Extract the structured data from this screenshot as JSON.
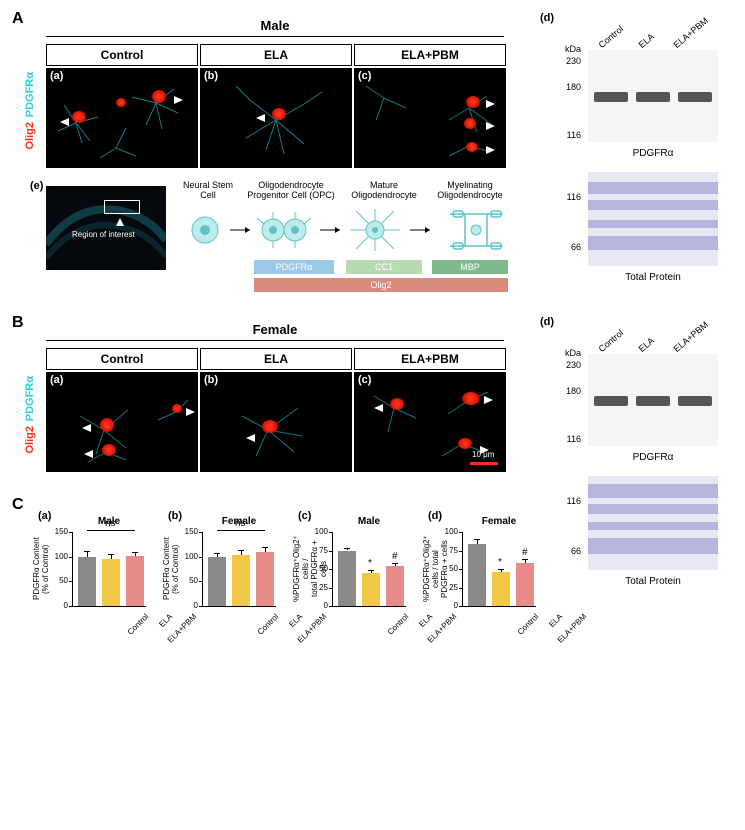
{
  "panels": {
    "A": "A",
    "B": "B",
    "C": "C"
  },
  "sections": {
    "male": "Male",
    "female": "Female"
  },
  "columns": [
    "Control",
    "ELA",
    "ELA+PBM"
  ],
  "sublabels": {
    "a": "(a)",
    "b": "(b)",
    "c": "(c)",
    "d": "(d)",
    "e": "(e)"
  },
  "stain": {
    "pdgfra": "PDGFRα",
    "olig2": "Olig2"
  },
  "stain_colors": {
    "pdgfra": "#2ad2d8",
    "olig2": "#ff2a1a"
  },
  "lineage": {
    "nsc": "Neural Stem\nCell",
    "opc": "Oligodendrocyte\nProgenitor Cell (OPC)",
    "mature": "Mature\nOligodendrocyte",
    "myel": "Myelinating\nOligodendrocyte",
    "markers": {
      "pdgfra": {
        "label": "PDGFRα",
        "color": "#9cc7e6"
      },
      "cc1": {
        "label": "CC1",
        "color": "#b7dab0"
      },
      "mbp": {
        "label": "MBP",
        "color": "#7eb88c"
      },
      "olig2": {
        "label": "Olig2",
        "color": "#d98a7a"
      }
    },
    "roi_text": "Region of interest"
  },
  "blot": {
    "lanes": [
      "Control",
      "ELA",
      "ELA+PBM"
    ],
    "kda_ul": "kDa",
    "kda_upper": [
      "230",
      "180",
      "116"
    ],
    "protein": "PDGFRα",
    "tp": "Total Protein",
    "kda_lower": [
      "116",
      "66"
    ]
  },
  "charts": {
    "a": {
      "title": "Male",
      "sub": "(a)",
      "ylabel": "PDGFRα Content (% of Control)",
      "ymax": 150,
      "yticks": [
        0,
        50,
        100,
        150
      ],
      "bars": [
        {
          "label": "Control",
          "value": 100,
          "err": 12,
          "color": "#8a8a8a"
        },
        {
          "label": "ELA",
          "value": 95,
          "err": 10,
          "color": "#f2c744"
        },
        {
          "label": "ELA+PBM",
          "value": 101,
          "err": 9,
          "color": "#e68a8a"
        }
      ],
      "sig": "ns"
    },
    "b": {
      "title": "Female",
      "sub": "(b)",
      "ylabel": "PDGFRα Content (% of Control)",
      "ymax": 150,
      "yticks": [
        0,
        50,
        100,
        150
      ],
      "bars": [
        {
          "label": "Control",
          "value": 100,
          "err": 8,
          "color": "#8a8a8a"
        },
        {
          "label": "ELA",
          "value": 104,
          "err": 10,
          "color": "#f2c744"
        },
        {
          "label": "ELA+PBM",
          "value": 109,
          "err": 10,
          "color": "#e68a8a"
        }
      ],
      "sig": "ns"
    },
    "c": {
      "title": "Male",
      "sub": "(c)",
      "ylabel": "%PDGFRα⁺Olig2⁺ cells /\ntotal PDGFRα + cells",
      "ymax": 100,
      "yticks": [
        0,
        25,
        50,
        75,
        100
      ],
      "bars": [
        {
          "label": "Control",
          "value": 75,
          "err": 4,
          "color": "#8a8a8a"
        },
        {
          "label": "ELA",
          "value": 44,
          "err": 5,
          "color": "#f2c744",
          "mark": "*"
        },
        {
          "label": "ELA+PBM",
          "value": 54,
          "err": 4,
          "color": "#e68a8a",
          "mark": "#"
        }
      ]
    },
    "d": {
      "title": "Female",
      "sub": "(d)",
      "ylabel": "%PDGFRα⁺Olig2⁺ cells / total\nPDGFRα + cells",
      "ymax": 100,
      "yticks": [
        0,
        25,
        50,
        75,
        100
      ],
      "bars": [
        {
          "label": "Control",
          "value": 84,
          "err": 6,
          "color": "#8a8a8a"
        },
        {
          "label": "ELA",
          "value": 46,
          "err": 4,
          "color": "#f2c744",
          "mark": "*"
        },
        {
          "label": "ELA+PBM",
          "value": 58,
          "err": 5,
          "color": "#e68a8a",
          "mark": "#"
        }
      ]
    }
  },
  "colors": {
    "cyan_cell": "#2ad2d8",
    "red_blob": "#ff2a1a",
    "arrow": "#ffffff"
  },
  "scale": "10 μm"
}
